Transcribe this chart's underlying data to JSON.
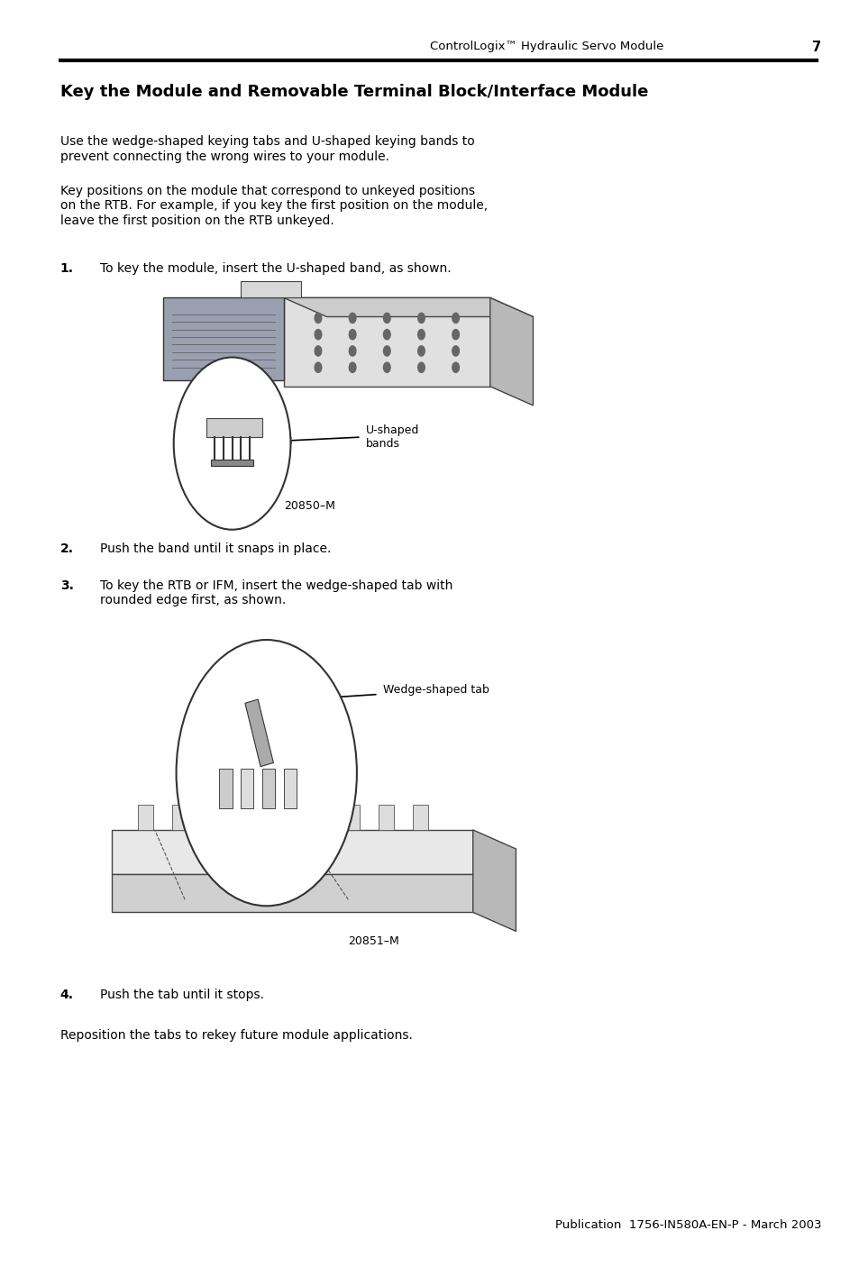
{
  "page_width": 9.54,
  "page_height": 14.06,
  "bg_color": "#ffffff",
  "header_text": "ControlLogix™ Hydraulic Servo Module",
  "header_page_num": "7",
  "title": "Key the Module and Removable Terminal Block/Interface Module",
  "para1": "Use the wedge-shaped keying tabs and U-shaped keying bands to\nprevent connecting the wrong wires to your module.",
  "para2": "Key positions on the module that correspond to unkeyed positions\non the RTB. For example, if you key the first position on the module,\nleave the first position on the RTB unkeyed.",
  "step1_text": "To key the module, insert the U-shaped band, as shown.",
  "step2_text": "Push the band until it snaps in place.",
  "step3_text": "To key the RTB or IFM, insert the wedge-shaped tab with\nrounded edge first, as shown.",
  "step4_text": "Push the tab until it stops.",
  "footer_text": "Reposition the tabs to rekey future module applications.",
  "pub_text": "Publication  1756-IN580A-EN-P - March 2003",
  "fig1_caption": "20850–M",
  "fig2_caption": "20851–M",
  "fig1_label": "U-shaped\nbands",
  "fig2_label": "Wedge-shaped tab",
  "title_fontsize": 13,
  "header_fontsize": 9.5,
  "body_fontsize": 10,
  "step_fontsize": 10,
  "footer_fontsize": 10,
  "pub_fontsize": 9.5
}
